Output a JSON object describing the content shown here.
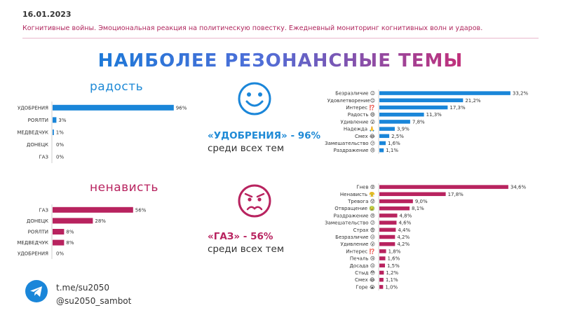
{
  "header": {
    "date": "16.01.2023",
    "subtitle": "Когнитивные войны. Эмоциональная реакция на политическую повестку. Ежедневный мониторинг когнитивных волн и ударов.",
    "title": "НАИБОЛЕЕ РЕЗОНАНСНЫЕ ТЕМЫ"
  },
  "joy": {
    "title": "радость",
    "summary_main": "«УДОБРЕНИЯ» - 96%",
    "summary_sub": "среди всех тем",
    "face_icon": "smiling-face-icon"
  },
  "hate": {
    "title": "ненависть",
    "summary_main": "«ГАЗ» - 56%",
    "summary_sub": "среди всех тем",
    "face_icon": "angry-face-icon"
  },
  "footer": {
    "icon": "telegram-icon",
    "link": "t.me/su2050",
    "bot": "@su2050_sambot"
  },
  "colors": {
    "blue": "#1a86d9",
    "pink": "#b8235f"
  },
  "chart_data": [
    {
      "type": "bar",
      "orientation": "horizontal",
      "categories": [
        "УДОБРЕНИЯ",
        "РОЯЛТИ",
        "МЕДВЕДЧУК",
        "ДОНЕЦК",
        "ГАЗ"
      ],
      "values": [
        96,
        3,
        1,
        0,
        0
      ],
      "value_labels": [
        "96%",
        "3%",
        "1%",
        "0%",
        "0%"
      ],
      "title": "радость",
      "xlim": [
        0,
        100
      ],
      "grid": false,
      "color": "#1a86d9"
    },
    {
      "type": "bar",
      "orientation": "horizontal",
      "categories": [
        "Безразличие 😐",
        "Удовлетворение😌",
        "Интерес ⁉️",
        "Радость 😄",
        "Удивление 😮",
        "Надежда 🙏",
        "Смех 😂",
        "Замешательство 😕",
        "Раздражение 😠"
      ],
      "values": [
        33.2,
        21.2,
        17.3,
        11.3,
        7.8,
        3.9,
        2.5,
        1.6,
        1.1
      ],
      "value_labels": [
        "33,2%",
        "21,2%",
        "17,3%",
        "11,3%",
        "7,8%",
        "3,9%",
        "2,5%",
        "1,6%",
        "1,1%"
      ],
      "xlim": [
        0,
        35
      ],
      "grid": false,
      "color": "#1a86d9"
    },
    {
      "type": "bar",
      "orientation": "horizontal",
      "categories": [
        "ГАЗ",
        "ДОНЕЦК",
        "РОЯЛТИ",
        "МЕДВЕДЧУК",
        "УДОБРЕНИЯ"
      ],
      "values": [
        56,
        28,
        8,
        8,
        0
      ],
      "value_labels": [
        "56%",
        "28%",
        "8%",
        "8%",
        "0%"
      ],
      "title": "ненависть",
      "xlim": [
        0,
        100
      ],
      "grid": false,
      "color": "#b8235f"
    },
    {
      "type": "bar",
      "orientation": "horizontal",
      "categories": [
        "Гнев 😡",
        "Ненависть 😤",
        "Тревога 😟",
        "Отвращение 🤢",
        "Раздражение 😠",
        "Замешательство 😕",
        "Страх 😨",
        "Безразличие 😐",
        "Удивление 😮",
        "Интерес ⁉️",
        "Печаль 😢",
        "Досада 😒",
        "Стыд 😳",
        "Смех 😂",
        "Горе 😭"
      ],
      "values": [
        34.6,
        17.8,
        9.0,
        8.1,
        4.8,
        4.6,
        4.4,
        4.2,
        4.2,
        1.8,
        1.6,
        1.5,
        1.2,
        1.1,
        1.0
      ],
      "value_labels": [
        "34,6%",
        "17,8%",
        "9,0%",
        "8,1%",
        "4,8%",
        "4,6%",
        "4,4%",
        "4,2%",
        "4,2%",
        "1,8%",
        "1,6%",
        "1,5%",
        "1,2%",
        "1,1%",
        "1,0%"
      ],
      "xlim": [
        0,
        35
      ],
      "grid": false,
      "color": "#b8235f"
    }
  ]
}
